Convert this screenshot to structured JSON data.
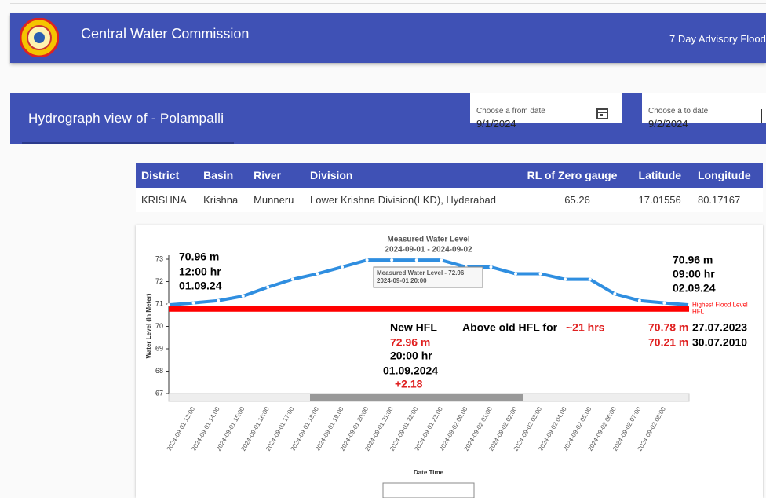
{
  "header": {
    "title": "Central Water Commission",
    "right_link": "7 Day Advisory Flood"
  },
  "subheader": {
    "title": "Hydrograph view of - Polampalli",
    "from_date": {
      "label": "Choose a from date",
      "value": "9/1/2024"
    },
    "to_date": {
      "label": "Choose a to date",
      "value": "9/2/2024"
    }
  },
  "table": {
    "columns": [
      "District",
      "Basin",
      "River",
      "Division",
      "RL of Zero gauge",
      "Latitude",
      "Longitude"
    ],
    "rows": [
      [
        "KRISHNA",
        "Krishna",
        "Munneru",
        "Lower Krishna Division(LKD), Hyderabad",
        "65.26",
        "17.01556",
        "80.17167"
      ]
    ]
  },
  "chart_data": {
    "type": "line",
    "title": "Measured Water Level",
    "subtitle": "2024-09-01 - 2024-09-02",
    "y_label": "Water Level (In Meter)",
    "x_label": "Date Time",
    "categories": [
      null,
      "2024-09-01 13:00",
      "2024-09-01 14:00",
      "2024-09-01 15:00",
      "2024-09-01 16:00",
      "2024-09-01 17:00",
      "2024-09-01 18:00",
      "2024-09-01 19:00",
      "2024-09-01 20:00",
      "2024-09-01 21:00",
      "2024-09-01 22:00",
      "2024-09-01 23:00",
      "2024-09-02 00:00",
      "2024-09-02 01:00",
      "2024-09-02 02:00",
      "2024-09-02 03:00",
      "2024-09-02 04:00",
      "2024-09-02 05:00",
      "2024-09-02 06:00",
      "2024-09-02 07:00",
      "2024-09-02 08:00",
      null
    ],
    "series": [
      {
        "name": "Measured Water Level",
        "color": "#2f8ee0",
        "values": [
          70.96,
          71.05,
          71.15,
          71.35,
          71.75,
          72.1,
          72.35,
          72.65,
          72.96,
          72.96,
          72.96,
          72.96,
          72.65,
          72.65,
          72.35,
          72.35,
          72.1,
          72.1,
          71.45,
          71.15,
          71.05,
          70.96
        ]
      }
    ],
    "hfl": {
      "value": 70.78,
      "label": [
        "Highest Flood Level",
        "HFL"
      ],
      "color": "#ff0000"
    },
    "ylim": [
      67,
      73
    ],
    "yticks": [
      67,
      68,
      69,
      70,
      71,
      72,
      73
    ],
    "tooltip": [
      "Measured Water Level - 72.96",
      "2024-09-01 20:00"
    ],
    "annotations": [
      {
        "text": "70.96 m",
        "color": "#000000"
      },
      {
        "text": "12:00 hr",
        "color": "#000000"
      },
      {
        "text": "01.09.24",
        "color": "#000000"
      },
      {
        "text": "70.96 m",
        "color": "#000000"
      },
      {
        "text": "09:00 hr",
        "color": "#000000"
      },
      {
        "text": "02.09.24",
        "color": "#000000"
      },
      {
        "text": "New HFL",
        "color": "#000000"
      },
      {
        "text": "72.96 m",
        "color": "#e02020"
      },
      {
        "text": "20:00 hr",
        "color": "#000000"
      },
      {
        "text": "01.09.2024",
        "color": "#000000"
      },
      {
        "text": "+2.18",
        "color": "#e02020"
      },
      {
        "text": "Above old HFL for",
        "color": "#000000"
      },
      {
        "text": "~21 hrs",
        "color": "#e02020"
      },
      {
        "text": "70.78 m",
        "color": "#e02020"
      },
      {
        "text": "27.07.2023",
        "color": "#000000"
      },
      {
        "text": "70.21 m",
        "color": "#e02020"
      },
      {
        "text": "30.07.2010",
        "color": "#000000"
      }
    ]
  }
}
